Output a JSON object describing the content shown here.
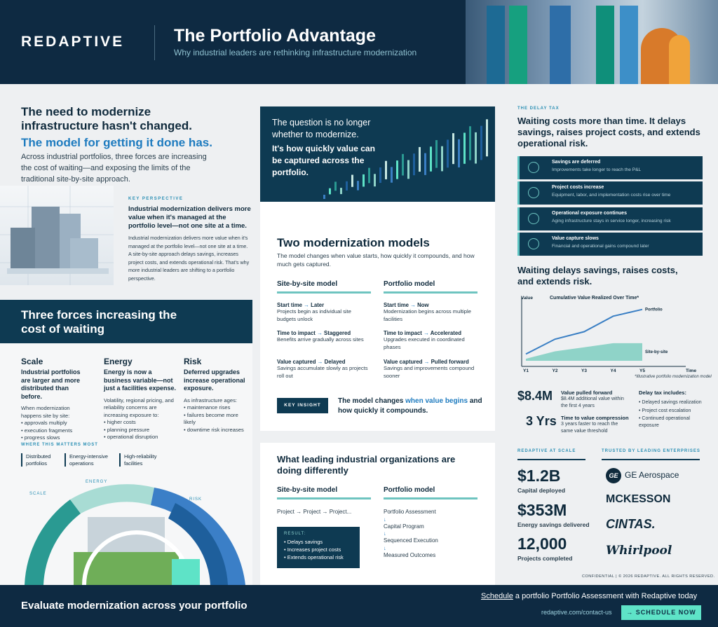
{
  "header": {
    "logo": "REDAPTIVE",
    "title": "The Portfolio Advantage",
    "subtitle": "Why industrial leaders are rethinking infrastructure modernization"
  },
  "intro": {
    "heading": "The need to modernize infrastructure hasn't changed.",
    "highlight": "The model for getting it done has.",
    "body": "Across industrial portfolios, three forces are increasing the cost of waiting—and exposing the limits of the traditional site-by-site approach."
  },
  "key_perspective": {
    "kicker": "KEY PERSPECTIVE",
    "heading": "Industrial modernization delivers more value when it's managed at the portfolio level—not one site at a time.",
    "body": "Industrial modernization delivers more value when it's managed at the portfolio level—not one site at a time. A site-by-site approach delays savings, increases project costs, and extends operational risk. That's why more industrial leaders are shifting to a portfolio perspective."
  },
  "forces": {
    "title": "Three forces increasing the cost of waiting",
    "items": [
      {
        "title": "Scale",
        "lead": "Industrial portfolios are larger and more distributed than before.",
        "sub": "When modernization happens site by site:",
        "bullets": [
          "approvals multiply",
          "execution fragments",
          "progress slows"
        ]
      },
      {
        "title": "Energy",
        "lead": "Energy is now a business variable—not just a facilities expense.",
        "sub": "Volatility, regional pricing, and reliability concerns are increasing exposure to:",
        "bullets": [
          "higher costs",
          "planning pressure",
          "operational disruption"
        ]
      },
      {
        "title": "Risk",
        "lead": "Deferred upgrades increase operational exposure.",
        "sub": "As infrastructure ages:",
        "bullets": [
          "maintenance rises",
          "failures become more likely",
          "downtime risk increases"
        ]
      }
    ],
    "where_title": "WHERE THIS MATTERS MOST",
    "where": [
      "Distributed portfolios",
      "Energy-intensive operations",
      "High-reliability facilities"
    ],
    "arc_labels": [
      "SCALE",
      "ENERGY",
      "RISK"
    ]
  },
  "question": {
    "line1": "The question is no longer whether to modernize.",
    "line2": "It's how quickly value can be captured across the portfolio."
  },
  "models": {
    "title": "Two modernization models",
    "body": "The model changes when value starts, how quickly it compounds, and how much gets captured.",
    "cols": [
      {
        "name": "Site-by-site model",
        "rows": [
          {
            "k": "Start time",
            "v": "Later",
            "d": "Projects begin as individual site budgets unlock"
          },
          {
            "k": "Time to impact",
            "v": "Staggered",
            "d": "Benefits arrive gradually across sites"
          },
          {
            "k": "Value captured",
            "v": "Delayed",
            "d": "Savings accumulate slowly as projects roll out"
          }
        ]
      },
      {
        "name": "Portfolio model",
        "rows": [
          {
            "k": "Start time",
            "v": "Now",
            "d": "Modernization begins across multiple facilities"
          },
          {
            "k": "Time to impact",
            "v": "Accelerated",
            "d": "Upgrades executed in coordinated phases"
          },
          {
            "k": "Value captured",
            "v": "Pulled forward",
            "d": "Savings and improvements compound sooner"
          }
        ]
      }
    ],
    "insight_badge": "KEY INSIGHT",
    "insight_pre": "The model changes ",
    "insight_bold": "when value begins",
    "insight_post": " and how quickly it compounds."
  },
  "leaders": {
    "title": "What leading industrial organizations are doing differently",
    "col1": "Site-by-site model",
    "col2": "Portfolio model",
    "flow": "Project → Project → Project...",
    "result_label": "RESULT:",
    "results": [
      "Delays savings",
      "Increases project costs",
      "Extends operational risk"
    ],
    "steps": [
      "Portfolio Assessment",
      "Capital Program",
      "Sequenced Execution",
      "Measured Outcomes"
    ]
  },
  "delay": {
    "kicker": "THE DELAY TAX",
    "heading": "Waiting costs more than time. It delays savings, raises project costs, and extends operational risk.",
    "items": [
      {
        "t": "Savings are deferred",
        "s": "Improvements take longer to reach the P&L",
        "icon": "clock-icon"
      },
      {
        "t": "Project costs increase",
        "s": "Equipment, labor, and implementation costs rise over time",
        "icon": "gear-icon"
      },
      {
        "t": "Operational exposure continues",
        "s": "Aging infrastructure stays in service longer, increasing risk",
        "icon": "globe-icon"
      },
      {
        "t": "Value capture slows",
        "s": "Financial and operational gains compound later",
        "icon": "hand-coin-icon"
      }
    ],
    "chart_heading": "Waiting delays savings, raises costs, and extends risk."
  },
  "chart_data": {
    "type": "area",
    "title": "Cumulative Value Realized Over Time*",
    "ylabel": "Value",
    "xlabel": "Time",
    "categories": [
      "Y1",
      "Y2",
      "Y3",
      "Y4",
      "Y5"
    ],
    "series": [
      {
        "name": "Portfolio",
        "values": [
          1,
          3.2,
          4.3,
          6.6,
          7.6
        ]
      },
      {
        "name": "Site-by-site",
        "values": [
          0.3,
          1.4,
          2.0,
          2.6,
          2.6
        ]
      }
    ],
    "note": "*Illustrative portfolio modernization model",
    "ylim": [
      0,
      8.5
    ],
    "colors": {
      "portfolio": "#3a7fc4",
      "site": "#8fd3c8"
    }
  },
  "stats": [
    {
      "value": "$8.4M",
      "label": "Value pulled forward",
      "desc": "$8.4M additional value within the first 4 years"
    },
    {
      "value": "3 Yrs",
      "label": "Time to value compression",
      "desc": "3 years faster to reach the same value threshold"
    }
  ],
  "delay_tax": {
    "title": "Delay tax includes:",
    "items": [
      "Delayed savings realization",
      "Project cost escalation",
      "Continued operational exposure"
    ]
  },
  "scale": {
    "kicker": "REDAPTIVE AT SCALE",
    "items": [
      {
        "value": "$1.2B",
        "label": "Capital deployed"
      },
      {
        "value": "$353M",
        "label": "Energy savings delivered"
      },
      {
        "value": "12,000",
        "label": "Projects completed"
      }
    ]
  },
  "trusted": {
    "kicker": "TRUSTED BY LEADING ENTERPRISES",
    "brands": [
      "GE Aerospace",
      "MCKESSON",
      "CINTAS.",
      "Whirlpool"
    ]
  },
  "confidential": "CONFIDENTIAL  |  © 2026 REDAPTIVE. ALL RIGHTS RESERVED.",
  "footer": {
    "left": "Evaluate modernization across your portfolio",
    "cta_link": "Schedule",
    "cta_rest": " a portfolio Portfolio Assessment with Redaptive today",
    "url": "redaptive.com/contact-us",
    "button": "→ SCHEDULE NOW"
  }
}
